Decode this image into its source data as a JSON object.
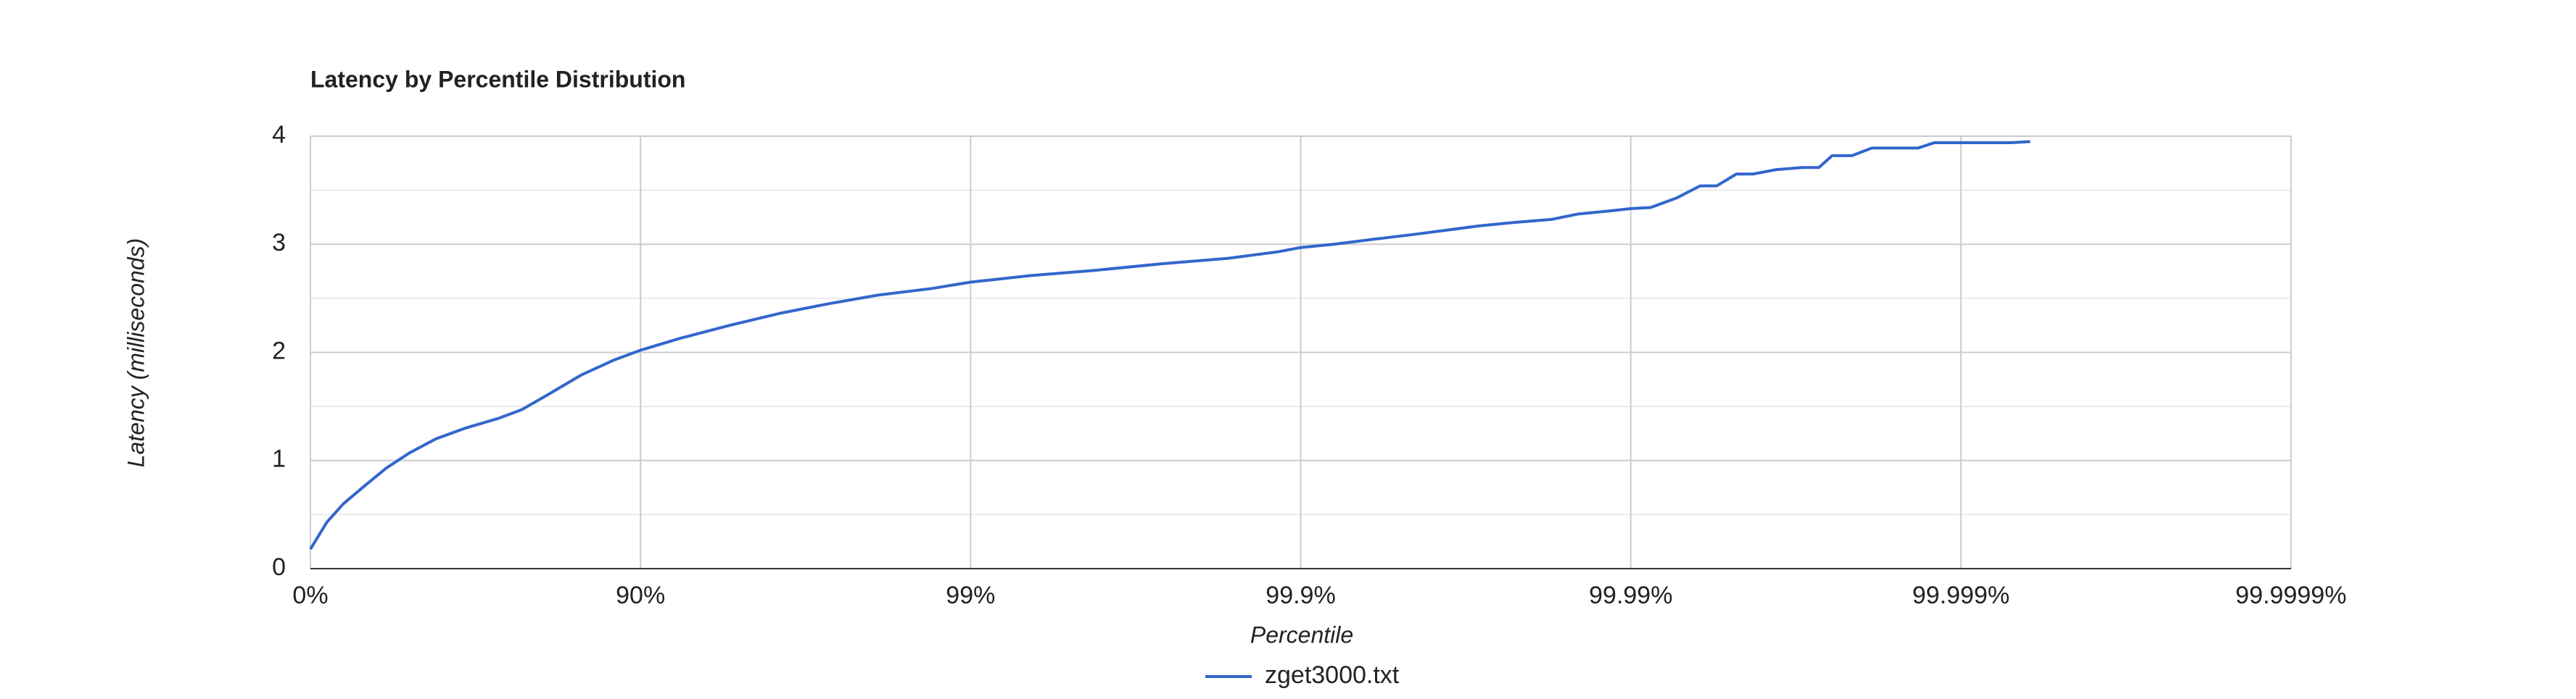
{
  "chart_data": {
    "type": "line",
    "title": "Latency by Percentile Distribution",
    "x_label": "Percentile",
    "y_label": "Latency (milliseconds)",
    "xlim": [
      0,
      6
    ],
    "xticks": [
      {
        "value": 0,
        "label": "0%"
      },
      {
        "value": 1,
        "label": "90%"
      },
      {
        "value": 2,
        "label": "99%"
      },
      {
        "value": 3,
        "label": "99.9%"
      },
      {
        "value": 4,
        "label": "99.99%"
      },
      {
        "value": 5,
        "label": "99.999%"
      },
      {
        "value": 6,
        "label": "99.9999%"
      }
    ],
    "ylim": [
      0,
      4
    ],
    "yticks": [
      0,
      1,
      2,
      3,
      4
    ],
    "y_minor_gridlines": [
      0.5,
      1.5,
      2.5,
      3.5
    ],
    "grid": true,
    "legend": "bottom",
    "x": [
      0,
      0.05,
      0.1,
      0.17,
      0.23,
      0.3,
      0.38,
      0.47,
      0.57,
      0.64,
      0.72,
      0.82,
      0.92,
      1.0,
      1.12,
      1.27,
      1.42,
      1.57,
      1.72,
      1.88,
      2.0,
      2.18,
      2.38,
      2.58,
      2.78,
      2.93,
      3.0,
      3.1,
      3.23,
      3.34,
      3.44,
      3.54,
      3.64,
      3.76,
      3.84,
      3.94,
      4.0,
      4.06,
      4.14,
      4.21,
      4.26,
      4.32,
      4.37,
      4.44,
      4.52,
      4.57,
      4.61,
      4.67,
      4.73,
      4.87,
      4.92,
      5.15,
      5.21
    ],
    "series": [
      {
        "name": "zget3000.txt",
        "color": "#3366cc",
        "values": [
          0.18,
          0.43,
          0.6,
          0.78,
          0.93,
          1.07,
          1.2,
          1.3,
          1.39,
          1.47,
          1.61,
          1.79,
          1.93,
          2.02,
          2.13,
          2.25,
          2.36,
          2.45,
          2.53,
          2.59,
          2.65,
          2.71,
          2.76,
          2.82,
          2.87,
          2.93,
          2.97,
          3.0,
          3.05,
          3.09,
          3.13,
          3.17,
          3.2,
          3.23,
          3.28,
          3.31,
          3.33,
          3.34,
          3.43,
          3.54,
          3.54,
          3.65,
          3.65,
          3.69,
          3.71,
          3.71,
          3.82,
          3.82,
          3.89,
          3.89,
          3.94,
          3.94,
          3.95
        ]
      }
    ]
  }
}
